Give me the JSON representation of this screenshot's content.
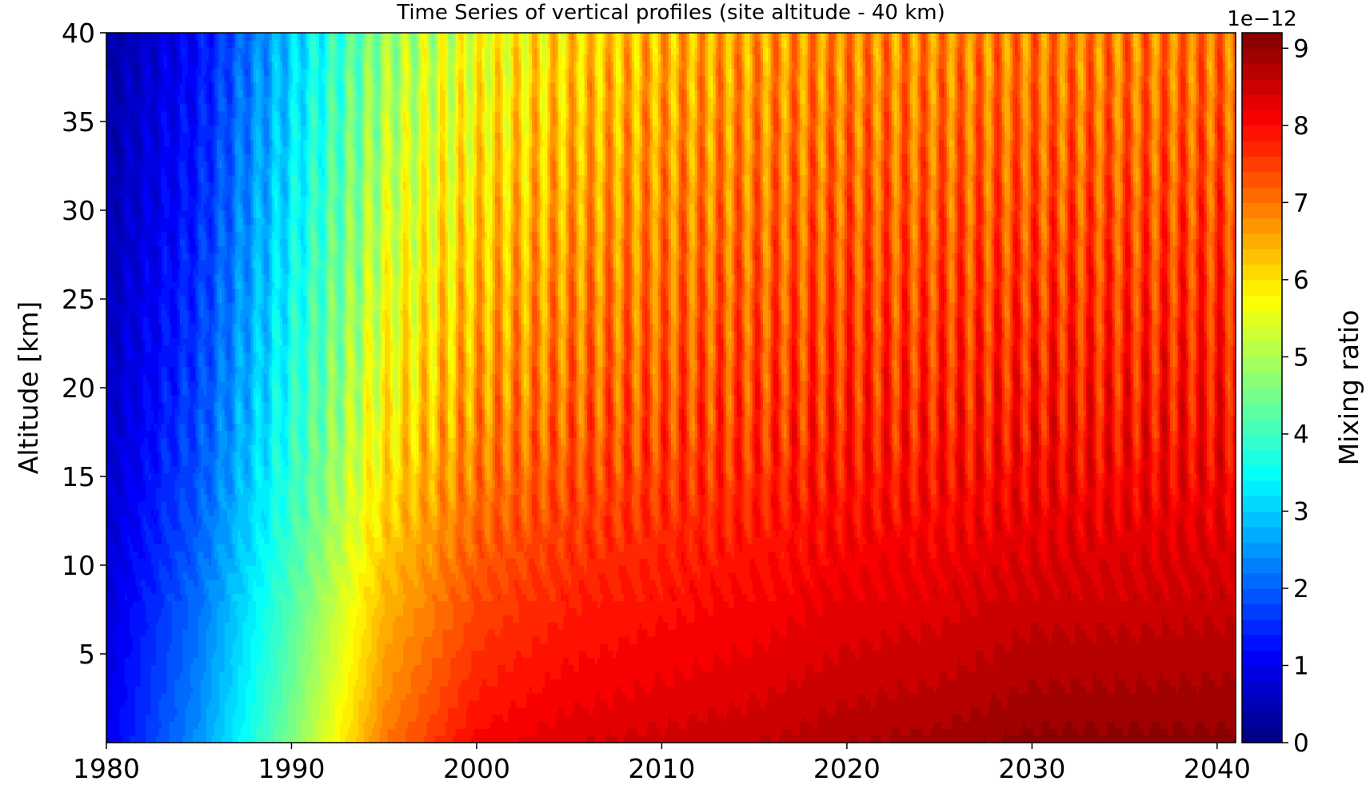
{
  "chart_data": {
    "type": "heatmap",
    "subtype": "filled-contour",
    "title": "Time Series of vertical profiles (site altitude - 40 km)",
    "xlabel": "",
    "ylabel": "Altitude [km]",
    "xlim": [
      1980,
      2041
    ],
    "ylim": [
      0,
      40
    ],
    "xticks": [
      1980,
      1990,
      2000,
      2010,
      2020,
      2030,
      2040
    ],
    "xtick_labels": [
      "1980",
      "1990",
      "2000",
      "2010",
      "2020",
      "2030",
      "2040"
    ],
    "yticks": [
      5,
      10,
      15,
      20,
      25,
      30,
      35,
      40
    ],
    "ytick_labels": [
      "5",
      "10",
      "15",
      "20",
      "25",
      "30",
      "35",
      "40"
    ],
    "colorbar": {
      "label": "Mixing ratio",
      "offset_text": "1e−12",
      "range": [
        0,
        9.2
      ],
      "ticks": [
        0,
        1,
        2,
        3,
        4,
        5,
        6,
        7,
        8,
        9
      ],
      "tick_labels": [
        "0",
        "1",
        "2",
        "3",
        "4",
        "5",
        "6",
        "7",
        "8",
        "9"
      ],
      "colormap": "jet",
      "levels": 46
    },
    "value_scale": 1e-12,
    "trend": {
      "description": "Mixing ratio (x1e-12) rises steadily over time; lower altitudes saturate earlier; strong seasonal oscillation above ~10 km",
      "years": [
        1980,
        1985,
        1990,
        1995,
        2000,
        2005,
        2010,
        2015,
        2020,
        2025,
        2030,
        2035,
        2040
      ],
      "surface_value": [
        1.0,
        2.5,
        4.6,
        7.0,
        8.1,
        8.4,
        8.5,
        8.6,
        8.8,
        8.9,
        9.1,
        9.1,
        9.1
      ],
      "top_40km_value": [
        0.3,
        1.2,
        3.0,
        4.8,
        5.6,
        6.1,
        6.4,
        6.6,
        6.8,
        6.8,
        6.9,
        6.9,
        7.0
      ]
    }
  }
}
